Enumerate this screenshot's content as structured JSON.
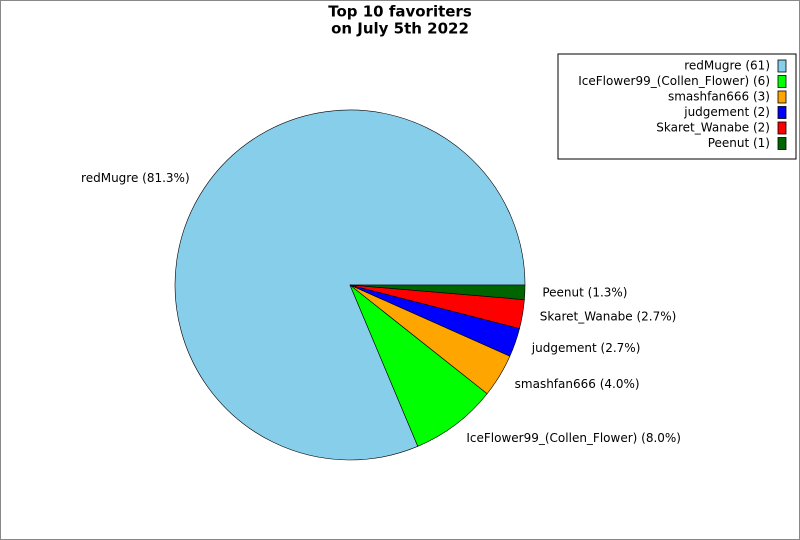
{
  "chart_data": {
    "type": "pie",
    "title": [
      "Top 10 favoriters",
      "on July 5th 2022"
    ],
    "labels": [
      "redMugre (61)",
      "IceFlower99_(Collen_Flower) (6)",
      "smashfan666 (3)",
      "judgement (2)",
      "Skaret_Wanabe (2)",
      "Peenut (1)"
    ],
    "values": [
      61,
      6,
      3,
      2,
      2,
      1
    ],
    "value_labels": [
      "redMugre (81.3%)",
      "IceFlower99_(Collen_Flower) (8.0%)",
      "smashfan666 (4.0%)",
      "judgement (2.7%)",
      "Skaret_Wanabe (2.7%)",
      "Peenut (1.3%)"
    ],
    "colors": [
      "#87ceeb",
      "#00ff00",
      "#ffa500",
      "#0000ff",
      "#ff0000",
      "#006400"
    ],
    "legend": "upper right"
  }
}
